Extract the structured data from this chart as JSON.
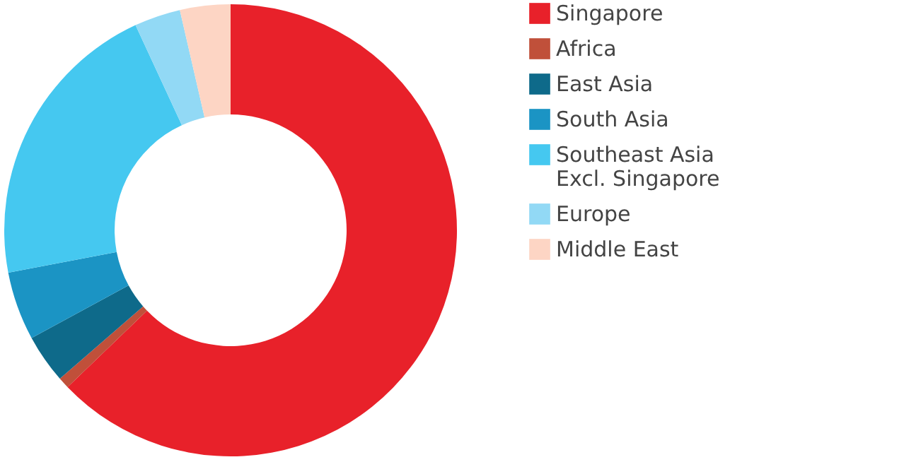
{
  "chart_data": {
    "type": "donut",
    "categories": [
      "Singapore",
      "Africa",
      "East Asia",
      "South Asia",
      "Southeast Asia\nExcl. Singapore",
      "Europe",
      "Middle East"
    ],
    "values": [
      62.8,
      0.8,
      3.5,
      4.9,
      21.1,
      3.3,
      3.6
    ],
    "colors": [
      "#e8212a",
      "#c0503a",
      "#0e6a8a",
      "#1b94c4",
      "#45c8f0",
      "#92d9f5",
      "#fdd5c4"
    ],
    "legend": "right"
  }
}
